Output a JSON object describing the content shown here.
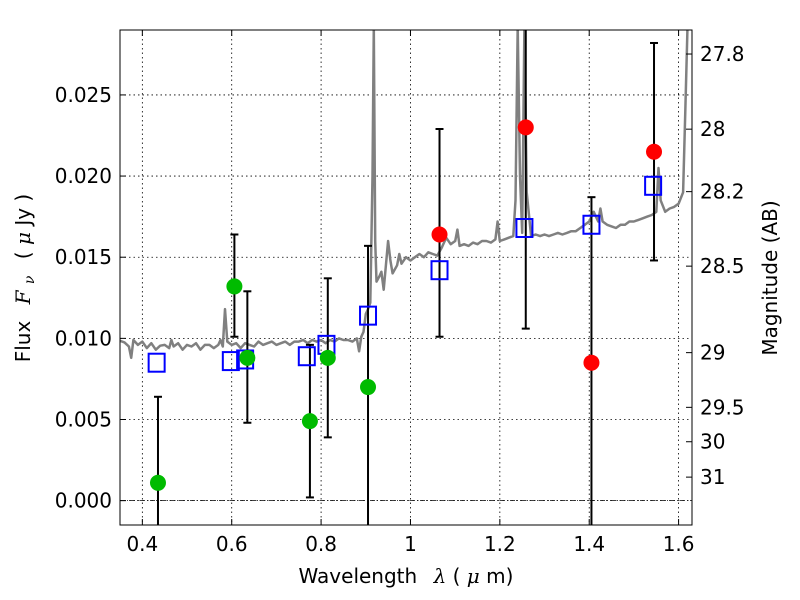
{
  "chart_data": {
    "type": "scatter",
    "xlabel_text": "Wavelength",
    "xlabel_symbol": "λ",
    "xlabel_unit_open": " (",
    "xlabel_unit_mu": "μ",
    "xlabel_unit_rest": "m)",
    "ylabel_text": "Flux",
    "ylabel_symbol": "F",
    "ylabel_sub": "ν",
    "ylabel_unit_open": "( ",
    "ylabel_unit_mu": "μ",
    "ylabel_unit_rest": "Jy )",
    "y2label": "Magnitude (AB)",
    "xlim": [
      0.35,
      1.63
    ],
    "ylim": [
      -0.0015,
      0.029
    ],
    "grid": true,
    "xticks": [
      {
        "v": 0.4,
        "label": "0.4"
      },
      {
        "v": 0.6,
        "label": "0.6"
      },
      {
        "v": 0.8,
        "label": "0.8"
      },
      {
        "v": 1.0,
        "label": "1"
      },
      {
        "v": 1.2,
        "label": "1.2"
      },
      {
        "v": 1.4,
        "label": "1.4"
      },
      {
        "v": 1.6,
        "label": "1.6"
      }
    ],
    "yticks": [
      {
        "v": 0.0,
        "label": "0.000"
      },
      {
        "v": 0.005,
        "label": "0.005"
      },
      {
        "v": 0.01,
        "label": "0.010"
      },
      {
        "v": 0.015,
        "label": "0.015"
      },
      {
        "v": 0.02,
        "label": "0.020"
      },
      {
        "v": 0.025,
        "label": "0.025"
      }
    ],
    "mag_ticks": [
      {
        "label": "27.8",
        "flux": 0.02752
      },
      {
        "label": "28",
        "flux": 0.02289
      },
      {
        "label": "28.2",
        "flux": 0.01904
      },
      {
        "label": "28.5",
        "flux": 0.01445
      },
      {
        "label": "29",
        "flux": 0.00912
      },
      {
        "label": "29.5",
        "flux": 0.00575
      },
      {
        "label": "30",
        "flux": 0.00363
      },
      {
        "label": "31",
        "flux": 0.00145
      }
    ],
    "colors": {
      "spectrum": "#808080",
      "model": "#0000ff",
      "green": "#00bb00",
      "red": "#ff0000",
      "errorbar": "#000000"
    },
    "series": [
      {
        "kind": "line",
        "points": [
          [
            0.35,
            0.00985
          ],
          [
            0.36,
            0.00975
          ],
          [
            0.37,
            0.0095
          ],
          [
            0.375,
            0.0088
          ],
          [
            0.38,
            0.0099
          ],
          [
            0.39,
            0.0096
          ],
          [
            0.4,
            0.0098
          ],
          [
            0.41,
            0.0094
          ],
          [
            0.42,
            0.0097
          ],
          [
            0.43,
            0.0093
          ],
          [
            0.44,
            0.00955
          ],
          [
            0.45,
            0.0096
          ],
          [
            0.46,
            0.0094
          ],
          [
            0.465,
            0.0099
          ],
          [
            0.47,
            0.0095
          ],
          [
            0.48,
            0.0097
          ],
          [
            0.49,
            0.0093
          ],
          [
            0.5,
            0.0096
          ],
          [
            0.51,
            0.0095
          ],
          [
            0.52,
            0.0097
          ],
          [
            0.53,
            0.0093
          ],
          [
            0.54,
            0.0096
          ],
          [
            0.55,
            0.0096
          ],
          [
            0.56,
            0.0094
          ],
          [
            0.57,
            0.0096
          ],
          [
            0.575,
            0.0099
          ],
          [
            0.58,
            0.0095
          ],
          [
            0.585,
            0.0118
          ],
          [
            0.59,
            0.0098
          ],
          [
            0.6,
            0.0096
          ],
          [
            0.61,
            0.0097
          ],
          [
            0.62,
            0.0094
          ],
          [
            0.63,
            0.0097
          ],
          [
            0.64,
            0.0096
          ],
          [
            0.65,
            0.0095
          ],
          [
            0.66,
            0.0098
          ],
          [
            0.67,
            0.0096
          ],
          [
            0.68,
            0.0097
          ],
          [
            0.69,
            0.0098
          ],
          [
            0.7,
            0.0096
          ],
          [
            0.71,
            0.0097
          ],
          [
            0.72,
            0.0098
          ],
          [
            0.73,
            0.0096
          ],
          [
            0.74,
            0.0098
          ],
          [
            0.75,
            0.0098
          ],
          [
            0.76,
            0.0099
          ],
          [
            0.77,
            0.0097
          ],
          [
            0.78,
            0.0099
          ],
          [
            0.79,
            0.0098
          ],
          [
            0.8,
            0.0099
          ],
          [
            0.81,
            0.0097
          ],
          [
            0.82,
            0.0099
          ],
          [
            0.83,
            0.0098
          ],
          [
            0.84,
            0.01
          ],
          [
            0.85,
            0.0099
          ],
          [
            0.86,
            0.0099
          ],
          [
            0.87,
            0.0098
          ],
          [
            0.88,
            0.01
          ],
          [
            0.885,
            0.0092
          ],
          [
            0.89,
            0.0101
          ],
          [
            0.895,
            0.0104
          ],
          [
            0.9,
            0.0115
          ],
          [
            0.905,
            0.0118
          ],
          [
            0.91,
            0.0122
          ],
          [
            0.912,
            0.015
          ],
          [
            0.915,
            0.02
          ],
          [
            0.918,
            0.0292
          ],
          [
            0.921,
            0.016
          ],
          [
            0.924,
            0.0135
          ],
          [
            0.93,
            0.0138
          ],
          [
            0.935,
            0.0141
          ],
          [
            0.94,
            0.013
          ],
          [
            0.945,
            0.0145
          ],
          [
            0.95,
            0.016
          ],
          [
            0.955,
            0.0148
          ],
          [
            0.96,
            0.014
          ],
          [
            0.97,
            0.0145
          ],
          [
            0.975,
            0.0152
          ],
          [
            0.98,
            0.0146
          ],
          [
            0.99,
            0.015
          ],
          [
            1.0,
            0.0148
          ],
          [
            1.01,
            0.015
          ],
          [
            1.02,
            0.0152
          ],
          [
            1.03,
            0.015
          ],
          [
            1.04,
            0.0153
          ],
          [
            1.05,
            0.0152
          ],
          [
            1.06,
            0.0151
          ],
          [
            1.07,
            0.0156
          ],
          [
            1.08,
            0.0162
          ],
          [
            1.09,
            0.0158
          ],
          [
            1.1,
            0.016
          ],
          [
            1.105,
            0.0167
          ],
          [
            1.11,
            0.0157
          ],
          [
            1.12,
            0.0158
          ],
          [
            1.13,
            0.0157
          ],
          [
            1.14,
            0.0159
          ],
          [
            1.15,
            0.0158
          ],
          [
            1.16,
            0.016
          ],
          [
            1.17,
            0.016
          ],
          [
            1.18,
            0.0159
          ],
          [
            1.19,
            0.0161
          ],
          [
            1.195,
            0.0172
          ],
          [
            1.2,
            0.016
          ],
          [
            1.21,
            0.0161
          ],
          [
            1.22,
            0.0162
          ],
          [
            1.23,
            0.0163
          ],
          [
            1.235,
            0.0185
          ],
          [
            1.24,
            0.0292
          ],
          [
            1.245,
            0.02
          ],
          [
            1.25,
            0.0165
          ],
          [
            1.255,
            0.0292
          ],
          [
            1.26,
            0.019
          ],
          [
            1.27,
            0.0163
          ],
          [
            1.28,
            0.0164
          ],
          [
            1.29,
            0.0163
          ],
          [
            1.3,
            0.0164
          ],
          [
            1.31,
            0.0163
          ],
          [
            1.32,
            0.0164
          ],
          [
            1.33,
            0.0165
          ],
          [
            1.34,
            0.0164
          ],
          [
            1.35,
            0.0165
          ],
          [
            1.36,
            0.0166
          ],
          [
            1.37,
            0.0166
          ],
          [
            1.38,
            0.0168
          ],
          [
            1.39,
            0.017
          ],
          [
            1.4,
            0.0172
          ],
          [
            1.41,
            0.0178
          ],
          [
            1.415,
            0.0175
          ],
          [
            1.42,
            0.0172
          ],
          [
            1.425,
            0.018
          ],
          [
            1.43,
            0.0172
          ],
          [
            1.44,
            0.017
          ],
          [
            1.45,
            0.0169
          ],
          [
            1.46,
            0.0168
          ],
          [
            1.47,
            0.017
          ],
          [
            1.48,
            0.017
          ],
          [
            1.49,
            0.0172
          ],
          [
            1.5,
            0.0172
          ],
          [
            1.51,
            0.0173
          ],
          [
            1.52,
            0.0174
          ],
          [
            1.53,
            0.0175
          ],
          [
            1.54,
            0.0176
          ],
          [
            1.55,
            0.0178
          ],
          [
            1.555,
            0.0205
          ],
          [
            1.56,
            0.0185
          ],
          [
            1.57,
            0.0178
          ],
          [
            1.58,
            0.018
          ],
          [
            1.59,
            0.0181
          ],
          [
            1.6,
            0.0183
          ],
          [
            1.61,
            0.019
          ],
          [
            1.615,
            0.024
          ],
          [
            1.62,
            0.0292
          ]
        ]
      },
      {
        "kind": "squares",
        "points": [
          [
            0.432,
            0.0085
          ],
          [
            0.598,
            0.0086
          ],
          [
            0.63,
            0.0087
          ],
          [
            0.768,
            0.0089
          ],
          [
            0.812,
            0.0096
          ],
          [
            0.905,
            0.0114
          ],
          [
            1.065,
            0.0142
          ],
          [
            1.255,
            0.0168
          ],
          [
            1.405,
            0.017
          ],
          [
            1.543,
            0.0194
          ]
        ]
      },
      {
        "kind": "circles-green",
        "points": [
          [
            0.435,
            0.0011
          ],
          [
            0.606,
            0.0132
          ],
          [
            0.635,
            0.0088
          ],
          [
            0.775,
            0.0049
          ],
          [
            0.815,
            0.0088
          ],
          [
            0.905,
            0.007
          ]
        ]
      },
      {
        "kind": "circles-red",
        "points": [
          [
            1.065,
            0.0164
          ],
          [
            1.258,
            0.023
          ],
          [
            1.405,
            0.0085
          ],
          [
            1.545,
            0.0215
          ]
        ]
      },
      {
        "kind": "errorbars",
        "bars": [
          [
            0.435,
            -0.0015,
            0.0064
          ],
          [
            0.606,
            0.0101,
            0.0164
          ],
          [
            0.635,
            0.0048,
            0.0129
          ],
          [
            0.775,
            0.0002,
            0.0096
          ],
          [
            0.815,
            0.0039,
            0.0137
          ],
          [
            0.905,
            -0.0015,
            0.0157
          ],
          [
            1.065,
            0.0101,
            0.0229
          ],
          [
            1.258,
            0.0106,
            0.0292
          ],
          [
            1.405,
            -0.0015,
            0.0187
          ],
          [
            1.545,
            0.0148,
            0.0282
          ]
        ]
      }
    ]
  }
}
